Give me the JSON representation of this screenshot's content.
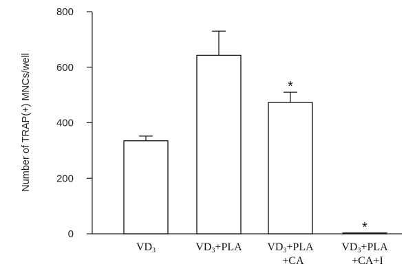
{
  "chart_data": {
    "type": "bar",
    "ylabel": "Number of TRAP(+) MNCs/well",
    "xlabel": "",
    "ylim": [
      0,
      800
    ],
    "yticks": [
      "0",
      "200",
      "400",
      "600",
      "800"
    ],
    "categories": [
      {
        "main": "VD",
        "sub": "3",
        "rest": "",
        "line2": ""
      },
      {
        "main": "VD",
        "sub": "3",
        "rest": "+PLA",
        "line2": ""
      },
      {
        "main": "VD",
        "sub": "3",
        "rest": "+PLA",
        "line2": "+CA"
      },
      {
        "main": "VD",
        "sub": "3",
        "rest": "+PLA",
        "line2": "+CA+I"
      }
    ],
    "values": [
      335,
      643,
      473,
      3
    ],
    "errors": [
      17,
      87,
      37,
      0
    ],
    "significance": [
      "",
      "",
      "*",
      "*"
    ],
    "grid": false,
    "bar_fill": "#ffffff",
    "bar_stroke": "#111111"
  }
}
